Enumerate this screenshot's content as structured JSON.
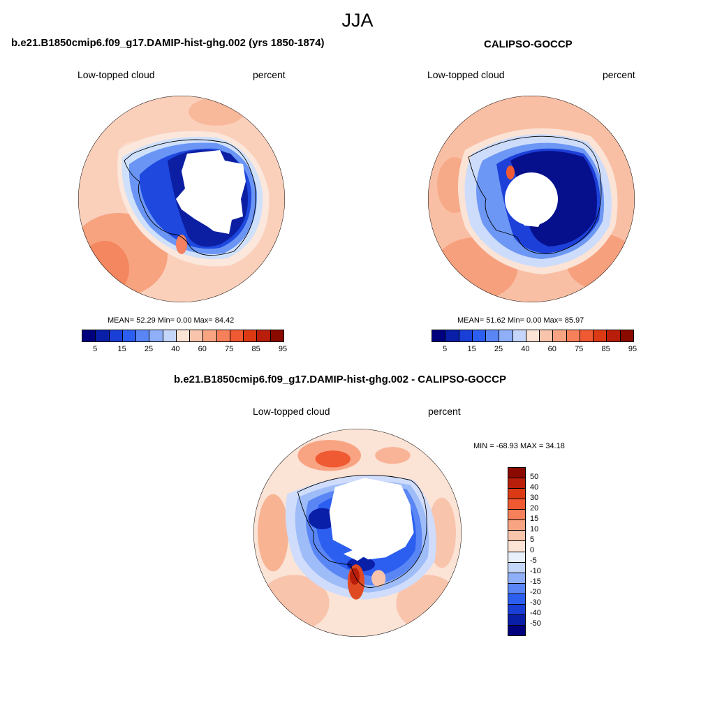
{
  "main_title": "JJA",
  "panels": [
    {
      "title": "b.e21.B1850cmip6.f09_g17.DAMIP-hist-ghg.002 (yrs 1850-1874)",
      "left_label": "Low-topped cloud",
      "right_label": "percent",
      "stats": "MEAN=  52.29  Min=   0.00  Max=  84.42"
    },
    {
      "title": "CALIPSO-GOCCP",
      "left_label": "Low-topped cloud",
      "right_label": "percent",
      "stats": "MEAN=  51.62  Min=   0.00  Max=  85.97"
    },
    {
      "title": "b.e21.B1850cmip6.f09_g17.DAMIP-hist-ghg.002 - CALIPSO-GOCCP",
      "left_label": "Low-topped cloud",
      "right_label": "percent",
      "stats": "MIN = -68.93 MAX =  34.18"
    }
  ],
  "colorbar_abs": {
    "tick_labels": [
      "5",
      "15",
      "25",
      "40",
      "60",
      "75",
      "85",
      "95"
    ],
    "colors": [
      "#00007f",
      "#0a1fa8",
      "#1a3fd6",
      "#2c5ff0",
      "#5a86f5",
      "#8fb0f8",
      "#c5d6fb",
      "#fbe3d6",
      "#f9c4ac",
      "#f8a483",
      "#f6805a",
      "#f05a32",
      "#dc3a14",
      "#b81e0a",
      "#8a0a00"
    ]
  },
  "colorbar_diff": {
    "tick_labels": [
      "50",
      "40",
      "30",
      "20",
      "15",
      "10",
      "5",
      "0",
      "-5",
      "-10",
      "-15",
      "-20",
      "-30",
      "-40",
      "-50"
    ],
    "colors": [
      "#8a0a00",
      "#b81e0a",
      "#dc3a14",
      "#f05a32",
      "#f6805a",
      "#f8a483",
      "#f9c4ac",
      "#fbe3d6",
      "#e8f0fb",
      "#c5d6fb",
      "#8fb0f8",
      "#5a86f5",
      "#2c5ff0",
      "#1a3fd6",
      "#0a1fa8",
      "#00007f"
    ]
  }
}
